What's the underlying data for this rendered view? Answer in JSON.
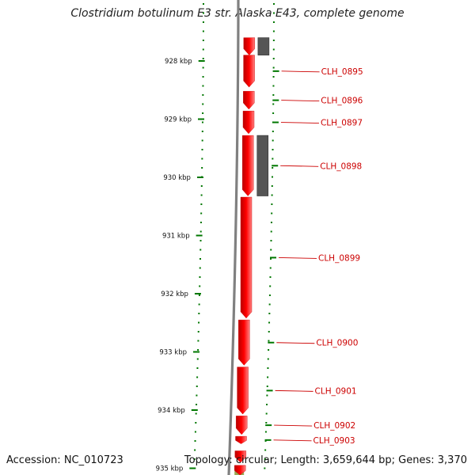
{
  "title": "Clostridium botulinum E3 str. Alaska E43, complete genome",
  "footer": {
    "accession": "Accession: NC_010723",
    "summary": "Topology: circular; Length: 3,659,644 bp; Genes: 3,370"
  },
  "colors": {
    "gene": "#ff0000",
    "gene_dark": "#b80000",
    "gene_light": "#ff8080",
    "label": "#cc0000",
    "backbone": "#808080",
    "other_feature": "#555555",
    "tick": "#007700",
    "rna_feature": "#99aa55"
  },
  "chart_data": {
    "type": "genome-map",
    "unit": "kbp",
    "scale_ticks": [
      {
        "kbp": 928,
        "label": "928 kbp"
      },
      {
        "kbp": 929,
        "label": "929 kbp"
      },
      {
        "kbp": 930,
        "label": "930 kbp"
      },
      {
        "kbp": 931,
        "label": "931 kbp"
      },
      {
        "kbp": 932,
        "label": "932 kbp"
      },
      {
        "kbp": 933,
        "label": "933 kbp"
      },
      {
        "kbp": 934,
        "label": "934 kbp"
      },
      {
        "kbp": 935,
        "label": "935 kbp"
      }
    ],
    "genes": [
      {
        "start": 927.6,
        "end": 927.9
      },
      {
        "start": 927.9,
        "end": 928.45,
        "label": "CLH_0895"
      },
      {
        "start": 928.52,
        "end": 928.83,
        "label": "CLH_0896"
      },
      {
        "start": 928.86,
        "end": 929.25,
        "label": "CLH_0897"
      },
      {
        "start": 929.28,
        "end": 930.32,
        "label": "CLH_0898"
      },
      {
        "start": 930.34,
        "end": 932.42,
        "label": "CLH_0899"
      },
      {
        "start": 932.45,
        "end": 933.23,
        "label": "CLH_0900"
      },
      {
        "start": 933.26,
        "end": 934.07,
        "label": "CLH_0901"
      },
      {
        "start": 934.1,
        "end": 934.42,
        "label": "CLH_0902"
      },
      {
        "start": 934.45,
        "end": 934.58,
        "label": "CLH_0903"
      },
      {
        "start": 934.7,
        "end": 934.9
      },
      {
        "start": 934.95,
        "end": 935.3
      }
    ],
    "other_features": [
      {
        "start": 927.6,
        "end": 927.9
      },
      {
        "start": 929.28,
        "end": 930.32
      }
    ],
    "rna_features": [
      {
        "start": 935.05,
        "end": 935.3
      }
    ]
  }
}
